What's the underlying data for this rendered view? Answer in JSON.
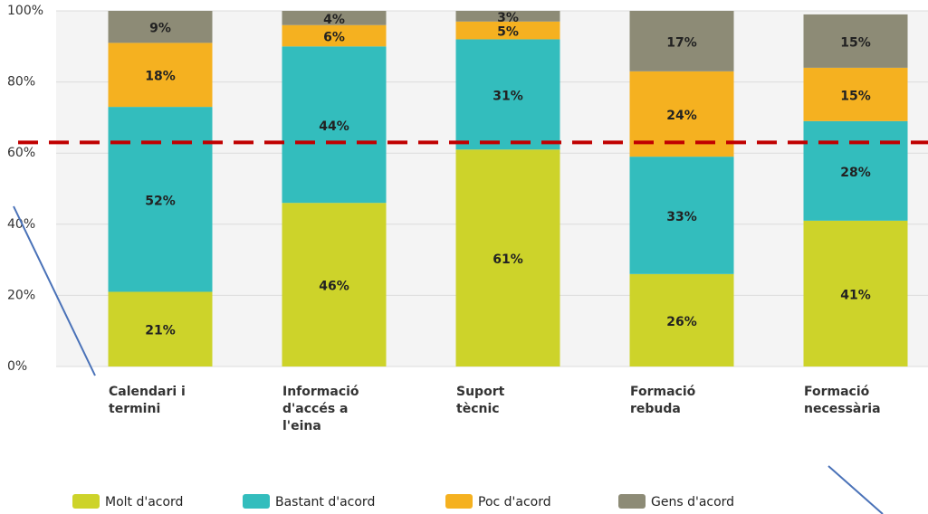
{
  "chart_data": {
    "type": "stacked_bar",
    "categories": [
      "Calendari i termini",
      "Informació d'accés a l'eina",
      "Suport tècnic",
      "Formació rebuda",
      "Formació necessària"
    ],
    "series": [
      {
        "name": "Molt d'acord",
        "color": "#cdd32a",
        "values": [
          21,
          46,
          61,
          26,
          41
        ],
        "value_labels": [
          "21%",
          "46%",
          "61%",
          "26%",
          "41%"
        ]
      },
      {
        "name": "Bastant d'acord",
        "color": "#33bdbd",
        "values": [
          52,
          44,
          31,
          33,
          28
        ],
        "value_labels": [
          "52%",
          "44%",
          "31%",
          "33%",
          "28%"
        ]
      },
      {
        "name": "Poc d'acord",
        "color": "#f5b120",
        "values": [
          18,
          6,
          5,
          24,
          15
        ],
        "value_labels": [
          "18%",
          "6%",
          "5%",
          "24%",
          "15%"
        ]
      },
      {
        "name": "Gens d'acord",
        "color": "#8d8b76",
        "values": [
          9,
          4,
          3,
          17,
          15
        ],
        "value_labels": [
          "9%",
          "4%",
          "3%",
          "17%",
          "15%"
        ]
      }
    ],
    "ylim": [
      0,
      100
    ],
    "yticks": [
      {
        "value": 0,
        "label": "0%"
      },
      {
        "value": 20,
        "label": "20%"
      },
      {
        "value": 40,
        "label": "40%"
      },
      {
        "value": 60,
        "label": "60%"
      },
      {
        "value": 80,
        "label": "80%"
      },
      {
        "value": 100,
        "label": "100%"
      }
    ],
    "grid": true,
    "reference_line": {
      "value": 63,
      "color": "#c00000"
    },
    "legend": "bottom"
  }
}
